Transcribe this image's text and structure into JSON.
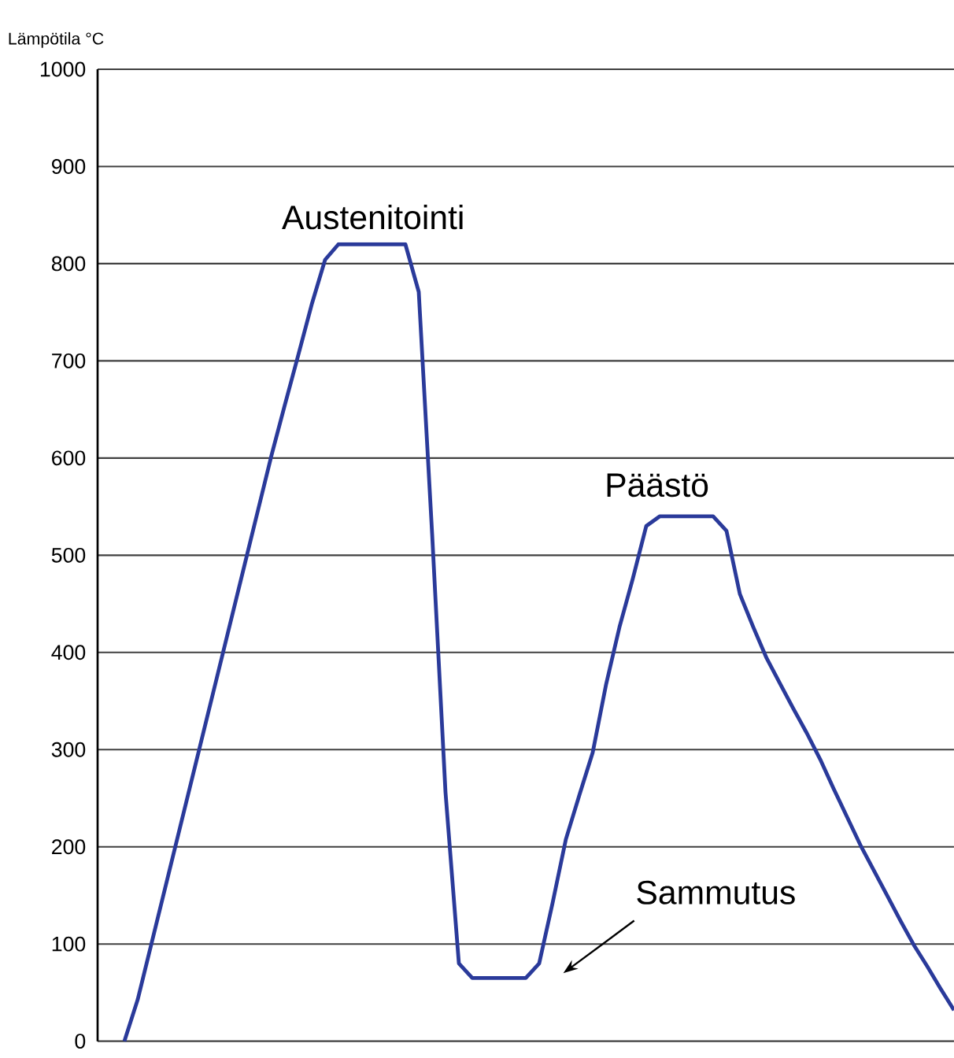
{
  "chart_data": {
    "type": "line",
    "ylabel": "Lämpötila °C",
    "categories": [
      null,
      null,
      null,
      null,
      null,
      null,
      null,
      null,
      null,
      null,
      null,
      null,
      null,
      null,
      null,
      null,
      null,
      null,
      null,
      null,
      null,
      null,
      null,
      null,
      null,
      null,
      null,
      null,
      null,
      null,
      null,
      null,
      null,
      null,
      null,
      null,
      null,
      null,
      null,
      null,
      null,
      null,
      null,
      null,
      null,
      null,
      null,
      null,
      null,
      null,
      null,
      null,
      null,
      null,
      null,
      null,
      null,
      null,
      null,
      null,
      null,
      null,
      null,
      null,
      null
    ],
    "series": [
      {
        "color": "#2a3a9a",
        "values": [
          null,
          null,
          0,
          43,
          99,
          155,
          211,
          267,
          323,
          379,
          435,
          491,
          547,
          603,
          655,
          706,
          758,
          804,
          820,
          820,
          820,
          820,
          820,
          820,
          771,
          522,
          256,
          80,
          65,
          65,
          65,
          65,
          65,
          80,
          142,
          208,
          253,
          297,
          367,
          426,
          476,
          530,
          540,
          540,
          540,
          540,
          540,
          525,
          460,
          426,
          394,
          368,
          342,
          317,
          290,
          260,
          231,
          202,
          176,
          150,
          124,
          99,
          77,
          54,
          32
        ]
      }
    ],
    "ylim": [
      0,
      1000
    ],
    "yticks": [
      0,
      100,
      200,
      300,
      400,
      500,
      600,
      700,
      800,
      900,
      1000
    ],
    "grid": "y",
    "tick_labels": "y",
    "marker": "none",
    "line_style": "solid",
    "annotations": [
      "Austenitointi",
      "Päästö",
      "Sammutus"
    ]
  }
}
